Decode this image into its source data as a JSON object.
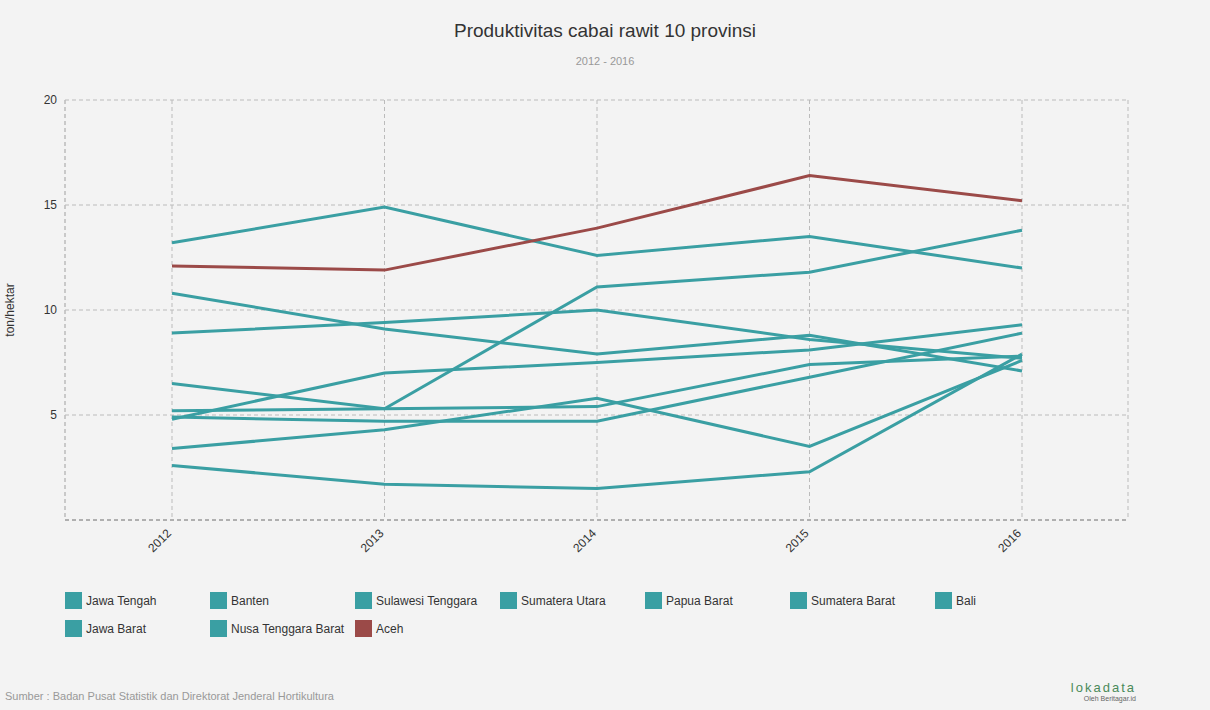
{
  "chart_data": {
    "type": "line",
    "title": "Produktivitas cabai rawit 10 provinsi",
    "subtitle": "2012 - 2016",
    "y_label": "ton/hektar",
    "source": "Sumber : Badan Pusat Statistik dan Direktorat Jenderal Hortikultura",
    "logo": "lokadata",
    "logo_sub": "Oleh Beritagar.id",
    "categories": [
      "2012",
      "2013",
      "2014",
      "2015",
      "2016"
    ],
    "ylim": [
      0,
      20
    ],
    "yticks": [
      5,
      10,
      15,
      20
    ],
    "grid": true,
    "series": [
      {
        "name": "Jawa Tengah",
        "color": "#3a9fa3",
        "values": [
          13.2,
          14.9,
          12.6,
          13.5,
          12.0
        ]
      },
      {
        "name": "Banten",
        "color": "#3a9fa3",
        "values": [
          10.8,
          9.1,
          7.9,
          8.8,
          7.1
        ]
      },
      {
        "name": "Sulawesi Tenggara",
        "color": "#3a9fa3",
        "values": [
          8.9,
          9.4,
          10.0,
          8.6,
          7.7
        ]
      },
      {
        "name": "Sumatera Utara",
        "color": "#3a9fa3",
        "values": [
          4.8,
          7.0,
          7.5,
          8.1,
          9.3
        ]
      },
      {
        "name": "Papua Barat",
        "color": "#3a9fa3",
        "values": [
          6.5,
          5.3,
          11.1,
          11.8,
          13.8
        ]
      },
      {
        "name": "Sumatera Barat",
        "color": "#3a9fa3",
        "values": [
          5.2,
          5.3,
          5.4,
          7.4,
          7.8
        ]
      },
      {
        "name": "Bali",
        "color": "#3a9fa3",
        "values": [
          4.9,
          4.7,
          4.7,
          6.8,
          8.9
        ]
      },
      {
        "name": "Jawa Barat",
        "color": "#3a9fa3",
        "values": [
          3.4,
          4.3,
          5.8,
          3.5,
          7.6
        ]
      },
      {
        "name": "Nusa Tenggara Barat",
        "color": "#3a9fa3",
        "values": [
          2.6,
          1.7,
          1.5,
          2.3,
          7.9
        ]
      },
      {
        "name": "Aceh",
        "color": "#9b4a48",
        "values": [
          12.1,
          11.9,
          13.9,
          16.4,
          15.2
        ]
      }
    ]
  }
}
